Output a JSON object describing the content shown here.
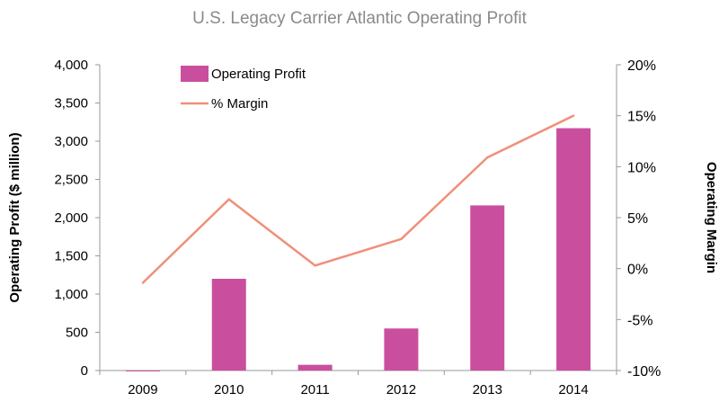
{
  "chart_data": {
    "type": "bar",
    "title": "U.S. Legacy Carrier Atlantic Operating Profit",
    "categories": [
      "2009",
      "2010",
      "2011",
      "2012",
      "2013",
      "2014"
    ],
    "series": [
      {
        "name": "Operating Profit",
        "type": "bar",
        "axis": "left",
        "values": [
          -5,
          1200,
          75,
          550,
          2160,
          3170
        ]
      },
      {
        "name": "% Margin",
        "type": "line",
        "axis": "right",
        "values": [
          -1.4,
          6.8,
          0.3,
          2.9,
          10.9,
          15.0
        ]
      }
    ],
    "ylabel": "Operating Profit ($ million)",
    "ylim": [
      0,
      4000
    ],
    "yticks": [
      0,
      500,
      1000,
      1500,
      2000,
      2500,
      3000,
      3500,
      4000
    ],
    "ytick_labels": [
      "0",
      "500",
      "1,000",
      "1,500",
      "2,000",
      "2,500",
      "3,000",
      "3,500",
      "4,000"
    ],
    "y2label": "Operating Margin",
    "y2lim": [
      -10,
      20
    ],
    "y2ticks": [
      -10,
      -5,
      0,
      5,
      10,
      15,
      20
    ],
    "y2tick_labels": [
      "-10%",
      "-5%",
      "0%",
      "5%",
      "10%",
      "15%",
      "20%"
    ],
    "legend_position": "top-left",
    "grid": false,
    "colors": {
      "bar": "#c94f9e",
      "line": "#f08f7a",
      "axis": "#999999"
    }
  }
}
